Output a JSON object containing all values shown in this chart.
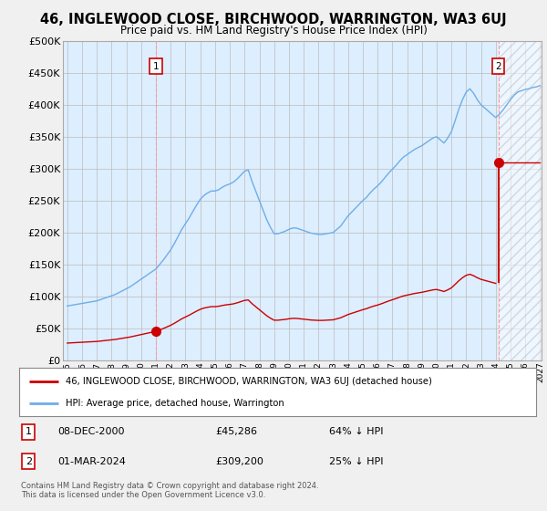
{
  "title": "46, INGLEWOOD CLOSE, BIRCHWOOD, WARRINGTON, WA3 6UJ",
  "subtitle": "Price paid vs. HM Land Registry's House Price Index (HPI)",
  "hpi_label": "HPI: Average price, detached house, Warrington",
  "price_label": "46, INGLEWOOD CLOSE, BIRCHWOOD, WARRINGTON, WA3 6UJ (detached house)",
  "footer": "Contains HM Land Registry data © Crown copyright and database right 2024.\nThis data is licensed under the Open Government Licence v3.0.",
  "ylim": [
    0,
    500000
  ],
  "yticks": [
    0,
    50000,
    100000,
    150000,
    200000,
    250000,
    300000,
    350000,
    400000,
    450000,
    500000
  ],
  "ytick_labels": [
    "£0",
    "£50K",
    "£100K",
    "£150K",
    "£200K",
    "£250K",
    "£300K",
    "£350K",
    "£400K",
    "£450K",
    "£500K"
  ],
  "hpi_color": "#6daee8",
  "price_color": "#cc0000",
  "sale1_year": 2001.0,
  "sale1_price": 45286,
  "sale2_year": 2024.17,
  "sale2_price": 309200,
  "background_color": "#f0f0f0",
  "plot_bg_color": "#ddeeff",
  "hatch_color": "#cccccc"
}
